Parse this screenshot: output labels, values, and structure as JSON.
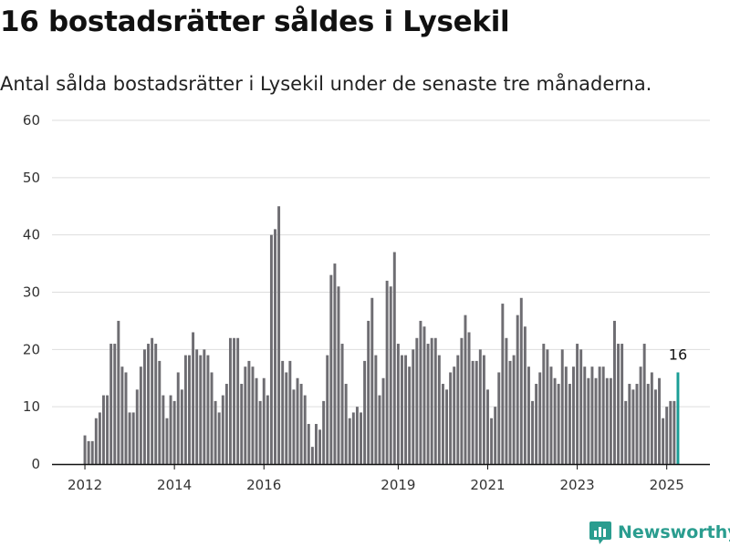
{
  "title": "16 bostadsrätter såldes i Lysekil",
  "subtitle": "Antal sålda bostadsrätter i Lysekil under de senaste tre månaderna.",
  "brand": {
    "name": "Newsworthy",
    "icon": "newsworthy-logo-icon",
    "color": "#2a9d8f"
  },
  "chart_data": {
    "type": "bar",
    "title": "",
    "xlabel": "",
    "ylabel": "",
    "ylim": [
      0,
      60
    ],
    "yticks": [
      0,
      10,
      20,
      30,
      40,
      50,
      60
    ],
    "xlim": [
      "2011-09",
      "2025-09"
    ],
    "xticks": [
      {
        "label": "2012",
        "date": "2012-01"
      },
      {
        "label": "2014",
        "date": "2014-01"
      },
      {
        "label": "2016",
        "date": "2016-01"
      },
      {
        "label": "2019",
        "date": "2019-01"
      },
      {
        "label": "2021",
        "date": "2021-01"
      },
      {
        "label": "2023",
        "date": "2023-01"
      },
      {
        "label": "2025",
        "date": "2025-01"
      }
    ],
    "grid": true,
    "colors": {
      "default": "#6e6d72",
      "highlight": "#1a9e96"
    },
    "highlight_last": true,
    "data_labels": [
      {
        "date": "2025-04",
        "value": 16,
        "text": "16"
      }
    ],
    "series": [
      {
        "x": [
          "2012-01",
          "2012-02",
          "2012-03",
          "2012-04",
          "2012-05",
          "2012-06",
          "2012-07",
          "2012-08",
          "2012-09",
          "2012-10",
          "2012-11",
          "2012-12",
          "2013-01",
          "2013-02",
          "2013-03",
          "2013-04",
          "2013-05",
          "2013-06",
          "2013-07",
          "2013-08",
          "2013-09",
          "2013-10",
          "2013-11",
          "2013-12",
          "2014-01",
          "2014-02",
          "2014-03",
          "2014-04",
          "2014-05",
          "2014-06",
          "2014-07",
          "2014-08",
          "2014-09",
          "2014-10",
          "2014-11",
          "2014-12",
          "2015-01",
          "2015-02",
          "2015-03",
          "2015-04",
          "2015-05",
          "2015-06",
          "2015-07",
          "2015-08",
          "2015-09",
          "2015-10",
          "2015-11",
          "2015-12",
          "2016-01",
          "2016-02",
          "2016-03",
          "2016-04",
          "2016-05",
          "2016-06",
          "2016-07",
          "2016-08",
          "2016-09",
          "2016-10",
          "2016-11",
          "2016-12",
          "2017-01",
          "2017-02",
          "2017-03",
          "2017-04",
          "2017-05",
          "2017-06",
          "2017-07",
          "2017-08",
          "2017-09",
          "2017-10",
          "2017-11",
          "2017-12",
          "2018-01",
          "2018-02",
          "2018-03",
          "2018-04",
          "2018-05",
          "2018-06",
          "2018-07",
          "2018-08",
          "2018-09",
          "2018-10",
          "2018-11",
          "2018-12",
          "2019-01",
          "2019-02",
          "2019-03",
          "2019-04",
          "2019-05",
          "2019-06",
          "2019-07",
          "2019-08",
          "2019-09",
          "2019-10",
          "2019-11",
          "2019-12",
          "2020-01",
          "2020-02",
          "2020-03",
          "2020-04",
          "2020-05",
          "2020-06",
          "2020-07",
          "2020-08",
          "2020-09",
          "2020-10",
          "2020-11",
          "2020-12",
          "2021-01",
          "2021-02",
          "2021-03",
          "2021-04",
          "2021-05",
          "2021-06",
          "2021-07",
          "2021-08",
          "2021-09",
          "2021-10",
          "2021-11",
          "2021-12",
          "2022-01",
          "2022-02",
          "2022-03",
          "2022-04",
          "2022-05",
          "2022-06",
          "2022-07",
          "2022-08",
          "2022-09",
          "2022-10",
          "2022-11",
          "2022-12",
          "2023-01",
          "2023-02",
          "2023-03",
          "2023-04",
          "2023-05",
          "2023-06",
          "2023-07",
          "2023-08",
          "2023-09",
          "2023-10",
          "2023-11",
          "2023-12",
          "2024-01",
          "2024-02",
          "2024-03",
          "2024-04",
          "2024-05",
          "2024-06",
          "2024-07",
          "2024-08",
          "2024-09",
          "2024-10",
          "2024-11",
          "2024-12",
          "2025-01",
          "2025-02",
          "2025-03",
          "2025-04"
        ],
        "values": [
          5,
          4,
          4,
          8,
          9,
          12,
          12,
          21,
          21,
          25,
          17,
          16,
          9,
          9,
          13,
          17,
          20,
          21,
          22,
          21,
          18,
          12,
          8,
          12,
          11,
          16,
          13,
          19,
          19,
          23,
          20,
          19,
          20,
          19,
          16,
          11,
          9,
          12,
          14,
          22,
          22,
          22,
          14,
          17,
          18,
          17,
          15,
          11,
          15,
          12,
          40,
          41,
          45,
          18,
          16,
          18,
          13,
          15,
          14,
          12,
          7,
          3,
          7,
          6,
          11,
          19,
          33,
          35,
          31,
          21,
          14,
          8,
          9,
          10,
          9,
          18,
          25,
          29,
          19,
          12,
          15,
          32,
          31,
          37,
          21,
          19,
          19,
          17,
          20,
          22,
          25,
          24,
          21,
          22,
          22,
          19,
          14,
          13,
          16,
          17,
          19,
          22,
          26,
          23,
          18,
          18,
          20,
          19,
          13,
          8,
          10,
          16,
          28,
          22,
          18,
          19,
          26,
          29,
          24,
          17,
          11,
          14,
          16,
          21,
          20,
          17,
          15,
          14,
          20,
          17,
          14,
          17,
          21,
          20,
          17,
          15,
          17,
          15,
          17,
          17,
          15,
          15,
          25,
          21,
          21,
          11,
          14,
          13,
          14,
          17,
          21,
          14,
          16,
          13,
          15,
          8,
          10,
          11,
          11,
          16
        ]
      }
    ]
  }
}
